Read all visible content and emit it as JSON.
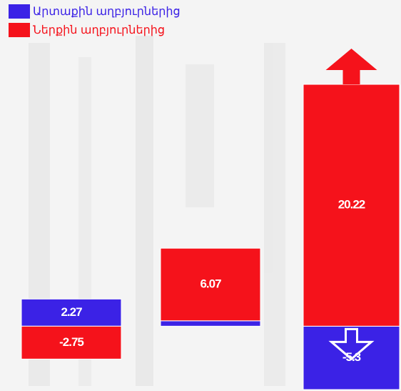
{
  "chart_data": {
    "type": "bar",
    "stacked": true,
    "categories": [
      null,
      null,
      null
    ],
    "series": [
      {
        "name": "Արտաքին աղբյուրներից",
        "color": "#3b22e6",
        "values": [
          2.27,
          0.45,
          -5.3
        ]
      },
      {
        "name": "Ներքին աղբյուրներից",
        "color": "#f5121b",
        "values": [
          -2.75,
          6.07,
          20.22
        ]
      }
    ]
  }
}
